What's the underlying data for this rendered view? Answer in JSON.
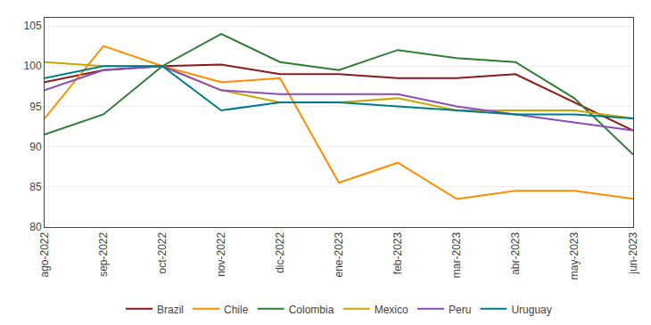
{
  "chart_data": {
    "type": "line",
    "categories": [
      "ago-2022",
      "sep-2022",
      "oct-2022",
      "nov-2022",
      "dic-2022",
      "ene-2023",
      "feb-2023",
      "mar-2023",
      "abr-2023",
      "may-2023",
      "jun-2023"
    ],
    "series": [
      {
        "name": "Brazil",
        "color": "#8B1A1A",
        "values": [
          98.0,
          99.5,
          100.0,
          100.2,
          99.0,
          99.0,
          98.5,
          98.5,
          99.0,
          95.5,
          92.0
        ]
      },
      {
        "name": "Chile",
        "color": "#FF8C00",
        "values": [
          93.5,
          102.5,
          100.0,
          98.0,
          98.5,
          85.5,
          88.0,
          83.5,
          84.5,
          84.5,
          83.5
        ]
      },
      {
        "name": "Colombia",
        "color": "#2E7D32",
        "values": [
          91.5,
          94.0,
          100.0,
          104.0,
          100.5,
          99.5,
          102.0,
          101.0,
          100.5,
          96.0,
          89.0
        ]
      },
      {
        "name": "Mexico",
        "color": "#C8A800",
        "values": [
          100.5,
          100.0,
          100.0,
          97.0,
          95.5,
          95.5,
          96.0,
          94.5,
          94.5,
          94.5,
          93.5
        ]
      },
      {
        "name": "Peru",
        "color": "#8B4DB8",
        "values": [
          97.0,
          99.5,
          100.0,
          97.0,
          96.5,
          96.5,
          96.5,
          95.0,
          94.0,
          93.0,
          92.0
        ]
      },
      {
        "name": "Uruguay",
        "color": "#007B8A",
        "values": [
          98.5,
          100.0,
          100.0,
          94.5,
          95.5,
          95.5,
          95.0,
          94.5,
          94.0,
          94.0,
          93.5
        ]
      }
    ],
    "ylim": [
      80,
      106
    ],
    "yticks": [
      80,
      85,
      90,
      95,
      100,
      105
    ],
    "grid": true,
    "legend": "bottom"
  }
}
